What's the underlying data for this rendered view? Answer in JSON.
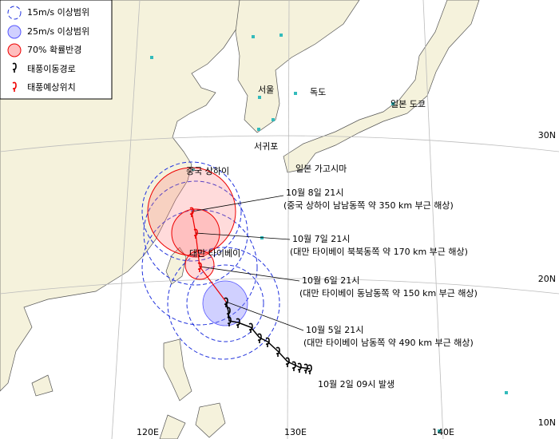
{
  "legend": [
    "15m/s 이상범위",
    "25m/s 이상범위",
    "70% 확률반경",
    "태풍이동경로",
    "태풍예상위치"
  ],
  "places": [
    "서울",
    "독도",
    "일본 도쿄",
    "서귀포",
    "일본 가고시마",
    "중국 상하이",
    "대만 타이베이"
  ],
  "forecasts": [
    {
      "time": "10월 8일 21시",
      "desc": "(중국 상하이 남남동쪽 약 350 km 부근 해상)"
    },
    {
      "time": "10월 7일 21시",
      "desc": "(대만 타이베이 북북동쪽 약 170 km 부근 해상)"
    },
    {
      "time": "10월 6일 21시",
      "desc": "(대만 타이베이 동남동쪽 약 150 km 부근 해상)"
    },
    {
      "time": "10월 5일 21시",
      "desc": "(대만 타이베이 남동쪽 약 490 km 부근 해상)"
    }
  ],
  "origin": "10월 2일 09시 발생",
  "grid_labels": {
    "lat": [
      "30N",
      "20N",
      "10N"
    ],
    "lon": [
      "120E",
      "130E",
      "140E"
    ]
  }
}
